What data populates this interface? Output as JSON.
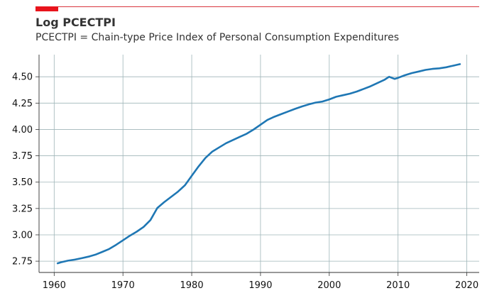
{
  "chart_data": {
    "type": "line",
    "title": "Log PCECTPI",
    "subtitle": "PCECTPI = Chain-type Price Index of Personal Consumption Expenditures",
    "xlabel": "",
    "ylabel": "",
    "xlim": [
      1957.8,
      2021.8
    ],
    "ylim": [
      2.643,
      4.71
    ],
    "xticks": [
      1960,
      1970,
      1980,
      1990,
      2000,
      2010,
      2020
    ],
    "xtick_labels": [
      "1960",
      "1970",
      "1980",
      "1990",
      "2000",
      "2010",
      "2020"
    ],
    "yticks": [
      2.75,
      3.0,
      3.25,
      3.5,
      3.75,
      4.0,
      4.25,
      4.5
    ],
    "ytick_labels": [
      "2.75",
      "3.00",
      "3.25",
      "3.50",
      "3.75",
      "4.00",
      "4.25",
      "4.50"
    ],
    "grid": true,
    "legend": "none",
    "line_color": "#1f77b4",
    "grid_color": "#9fb5b8",
    "accent_color": "#e8141c",
    "series": [
      {
        "name": "",
        "x": [
          1960.5,
          1961,
          1962,
          1963,
          1964,
          1965,
          1966,
          1967,
          1968,
          1969,
          1970,
          1971,
          1972,
          1973,
          1974,
          1975,
          1976,
          1977,
          1978,
          1979,
          1980,
          1981,
          1982,
          1983,
          1984,
          1985,
          1986,
          1987,
          1988,
          1989,
          1990,
          1991,
          1992,
          1993,
          1994,
          1995,
          1996,
          1997,
          1998,
          1999,
          2000,
          2001,
          2002,
          2003,
          2004,
          2005,
          2006,
          2007,
          2008,
          2008.7,
          2009.5,
          2010,
          2011,
          2012,
          2013,
          2014,
          2015,
          2016,
          2017,
          2018,
          2019
        ],
        "values": [
          2.73,
          2.74,
          2.755,
          2.765,
          2.778,
          2.793,
          2.812,
          2.838,
          2.866,
          2.905,
          2.948,
          2.992,
          3.03,
          3.075,
          3.14,
          3.255,
          3.31,
          3.36,
          3.41,
          3.47,
          3.56,
          3.65,
          3.73,
          3.79,
          3.83,
          3.87,
          3.9,
          3.93,
          3.96,
          4.0,
          4.045,
          4.09,
          4.12,
          4.145,
          4.17,
          4.195,
          4.218,
          4.238,
          4.255,
          4.265,
          4.285,
          4.31,
          4.325,
          4.34,
          4.36,
          4.385,
          4.41,
          4.44,
          4.47,
          4.5,
          4.48,
          4.49,
          4.515,
          4.535,
          4.55,
          4.565,
          4.575,
          4.58,
          4.59,
          4.605,
          4.62
        ]
      }
    ]
  }
}
